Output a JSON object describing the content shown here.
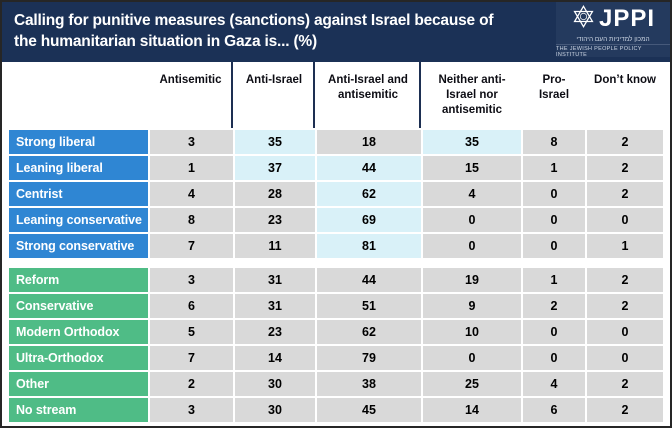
{
  "header": {
    "title_line1": "Calling for punitive measures (sanctions) against Israel because of",
    "title_line2": "the humanitarian situation in Gaza is... (%)",
    "logo": {
      "name": "JPPI",
      "hebrew": "המכון למדיניות העם היהודי",
      "english": "THE JEWISH PEOPLE POLICY INSTITUTE"
    }
  },
  "colors": {
    "header_bar": "#1b3156",
    "logo_box": "#243a5e",
    "row_blue": "#2f86d3",
    "row_green": "#4fbc86",
    "cell_bg": "#d9d9d9",
    "highlight_bg": "#d9f1f8",
    "divider": "#1d2f52"
  },
  "chart_data": {
    "type": "table",
    "title": "Calling for punitive measures (sanctions) against Israel because of the humanitarian situation in Gaza is... (%)",
    "unit": "percent",
    "columns": [
      "Antisemitic",
      "Anti-Israel",
      "Anti-Israel and antisemitic",
      "Neither anti-Israel nor antisemitic",
      "Pro-Israel",
      "Don’t know"
    ],
    "groups": [
      {
        "name": "political-orientation",
        "rows": [
          {
            "label": "Strong liberal",
            "values": [
              3,
              35,
              18,
              35,
              8,
              2
            ],
            "highlight": [
              1,
              3
            ]
          },
          {
            "label": "Leaning liberal",
            "values": [
              1,
              37,
              44,
              15,
              1,
              2
            ],
            "highlight": [
              1,
              2
            ]
          },
          {
            "label": "Centrist",
            "values": [
              4,
              28,
              62,
              4,
              0,
              2
            ],
            "highlight": [
              2
            ]
          },
          {
            "label": "Leaning conservative",
            "values": [
              8,
              23,
              69,
              0,
              0,
              0
            ],
            "highlight": [
              2
            ]
          },
          {
            "label": "Strong conservative",
            "values": [
              7,
              11,
              81,
              0,
              0,
              1
            ],
            "highlight": [
              2
            ]
          }
        ]
      },
      {
        "name": "religious-stream",
        "rows": [
          {
            "label": "Reform",
            "values": [
              3,
              31,
              44,
              19,
              1,
              2
            ],
            "highlight": []
          },
          {
            "label": "Conservative",
            "values": [
              6,
              31,
              51,
              9,
              2,
              2
            ],
            "highlight": []
          },
          {
            "label": "Modern Orthodox",
            "values": [
              5,
              23,
              62,
              10,
              0,
              0
            ],
            "highlight": []
          },
          {
            "label": "Ultra-Orthodox",
            "values": [
              7,
              14,
              79,
              0,
              0,
              0
            ],
            "highlight": []
          },
          {
            "label": "Other",
            "values": [
              2,
              30,
              38,
              25,
              4,
              2
            ],
            "highlight": []
          },
          {
            "label": "No stream",
            "values": [
              3,
              30,
              45,
              14,
              6,
              2
            ],
            "highlight": []
          }
        ]
      }
    ],
    "layout": {
      "highlight_meaning": "most-selected answer(s) per political row",
      "divider_columns_after": [
        0,
        1,
        2
      ]
    }
  }
}
